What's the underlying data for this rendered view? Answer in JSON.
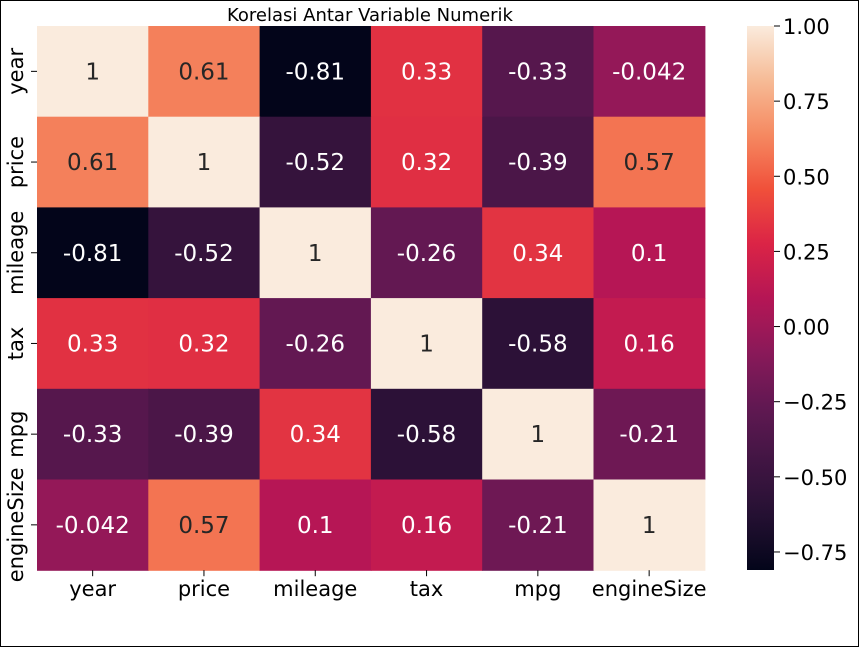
{
  "chart_data": {
    "type": "heatmap",
    "title": "Korelasi Antar Variable Numerik",
    "x_labels": [
      "year",
      "price",
      "mileage",
      "tax",
      "mpg",
      "engineSize"
    ],
    "y_labels": [
      "year",
      "price",
      "mileage",
      "tax",
      "mpg",
      "engineSize"
    ],
    "cell_labels": [
      [
        "1",
        "0.61",
        "-0.81",
        "0.33",
        "-0.33",
        "-0.042"
      ],
      [
        "0.61",
        "1",
        "-0.52",
        "0.32",
        "-0.39",
        "0.57"
      ],
      [
        "-0.81",
        "-0.52",
        "1",
        "-0.26",
        "0.34",
        "0.1"
      ],
      [
        "0.33",
        "0.32",
        "-0.26",
        "1",
        "-0.58",
        "0.16"
      ],
      [
        "-0.33",
        "-0.39",
        "0.34",
        "-0.58",
        "1",
        "-0.21"
      ],
      [
        "-0.042",
        "0.57",
        "0.1",
        "0.16",
        "-0.21",
        "1"
      ]
    ],
    "values": [
      [
        1,
        0.61,
        -0.81,
        0.33,
        -0.33,
        -0.042
      ],
      [
        0.61,
        1,
        -0.52,
        0.32,
        -0.39,
        0.57
      ],
      [
        -0.81,
        -0.52,
        1,
        -0.26,
        0.34,
        0.1
      ],
      [
        0.33,
        0.32,
        -0.26,
        1,
        -0.58,
        0.16
      ],
      [
        -0.33,
        -0.39,
        0.34,
        -0.58,
        1,
        -0.21
      ],
      [
        -0.042,
        0.57,
        0.1,
        0.16,
        -0.21,
        1
      ]
    ],
    "colorbar": {
      "vmin": -0.81,
      "vmax": 1,
      "ticks": [
        1,
        0.75,
        0.5,
        0.25,
        0,
        -0.25,
        -0.5,
        -0.75
      ],
      "tick_labels": [
        "1.00",
        "0.75",
        "0.50",
        "0.25",
        "0.00",
        "−0.25",
        "−0.50",
        "−0.75"
      ],
      "colormap": "rocket"
    },
    "grid": false,
    "colors": {
      "annot_light_bg": "#262626",
      "annot_dark_bg": "#ffffff",
      "axis": "#000000"
    }
  }
}
